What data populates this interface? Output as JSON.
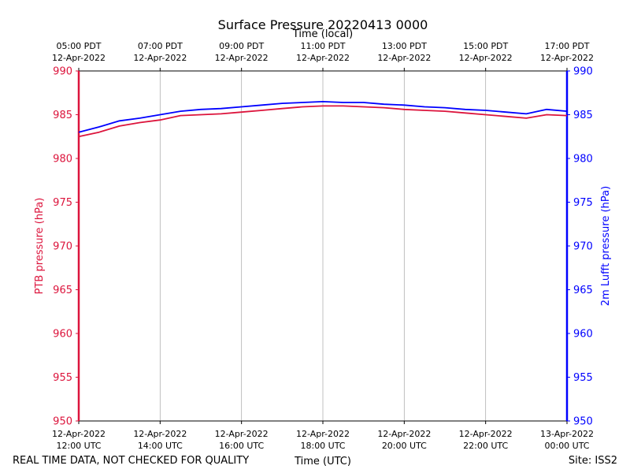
{
  "chart_data": {
    "type": "line",
    "title": "Surface Pressure 20220413 0000",
    "top_xlabel": "Time (local)",
    "xlabel": "Time (UTC)",
    "ylabel_left": "PTB pressure (hPa)",
    "ylabel_right": "2m Lufft pressure (hPa)",
    "ylim": [
      950,
      990
    ],
    "yticks": [
      950,
      955,
      960,
      965,
      970,
      975,
      980,
      985,
      990
    ],
    "xlim": [
      12,
      24
    ],
    "grid": "vertical",
    "bottom_ticks": [
      {
        "x": 12,
        "line1": "12-Apr-2022",
        "line2": "12:00 UTC"
      },
      {
        "x": 14,
        "line1": "12-Apr-2022",
        "line2": "14:00 UTC"
      },
      {
        "x": 16,
        "line1": "12-Apr-2022",
        "line2": "16:00 UTC"
      },
      {
        "x": 18,
        "line1": "12-Apr-2022",
        "line2": "18:00 UTC"
      },
      {
        "x": 20,
        "line1": "12-Apr-2022",
        "line2": "20:00 UTC"
      },
      {
        "x": 22,
        "line1": "12-Apr-2022",
        "line2": "22:00 UTC"
      },
      {
        "x": 24,
        "line1": "13-Apr-2022",
        "line2": "00:00 UTC"
      }
    ],
    "top_ticks": [
      {
        "x": 12,
        "line1": "05:00 PDT",
        "line2": "12-Apr-2022"
      },
      {
        "x": 14,
        "line1": "07:00 PDT",
        "line2": "12-Apr-2022"
      },
      {
        "x": 16,
        "line1": "09:00 PDT",
        "line2": "12-Apr-2022"
      },
      {
        "x": 18,
        "line1": "11:00 PDT",
        "line2": "12-Apr-2022"
      },
      {
        "x": 20,
        "line1": "13:00 PDT",
        "line2": "12-Apr-2022"
      },
      {
        "x": 22,
        "line1": "15:00 PDT",
        "line2": "12-Apr-2022"
      },
      {
        "x": 24,
        "line1": "17:00 PDT",
        "line2": "12-Apr-2022"
      }
    ],
    "series": [
      {
        "name": "PTB pressure",
        "color": "#dc143c",
        "axis": "left",
        "x": [
          12,
          12.5,
          13,
          13.5,
          14,
          14.5,
          15,
          15.5,
          16,
          16.5,
          17,
          17.5,
          18,
          18.5,
          19,
          19.5,
          20,
          20.5,
          21,
          21.5,
          22,
          22.5,
          23,
          23.5,
          24
        ],
        "values": [
          982.5,
          983.0,
          983.7,
          984.1,
          984.4,
          984.9,
          985.0,
          985.1,
          985.3,
          985.5,
          985.7,
          985.9,
          986.0,
          986.0,
          985.9,
          985.8,
          985.6,
          985.5,
          985.4,
          985.2,
          985.0,
          984.8,
          984.6,
          985.0,
          984.9
        ]
      },
      {
        "name": "2m Lufft pressure",
        "color": "#0000ff",
        "axis": "right",
        "x": [
          12,
          12.5,
          13,
          13.5,
          14,
          14.5,
          15,
          15.5,
          16,
          16.5,
          17,
          17.5,
          18,
          18.5,
          19,
          19.5,
          20,
          20.5,
          21,
          21.5,
          22,
          22.5,
          23,
          23.5,
          24
        ],
        "values": [
          983.0,
          983.6,
          984.3,
          984.6,
          985.0,
          985.4,
          985.6,
          985.7,
          985.9,
          986.1,
          986.3,
          986.4,
          986.5,
          986.4,
          986.4,
          986.2,
          986.1,
          985.9,
          985.8,
          985.6,
          985.5,
          985.3,
          985.1,
          985.6,
          985.4
        ]
      }
    ]
  },
  "footer": {
    "left_note": "REAL TIME DATA, NOT CHECKED FOR QUALITY",
    "site": "Site: ISS2"
  }
}
